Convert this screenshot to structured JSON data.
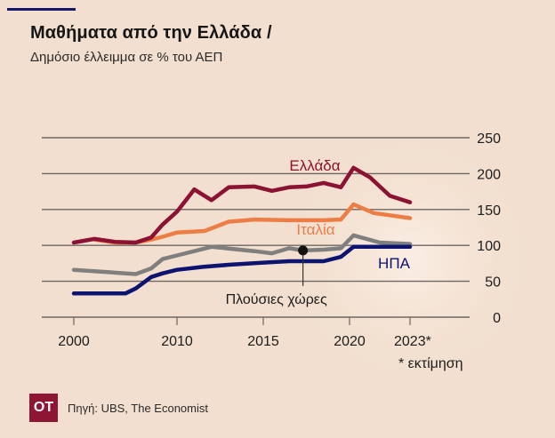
{
  "header": {
    "title": "Μαθήματα από την Ελλάδα  /",
    "subtitle": "Δημόσιο έλλειμμα σε % του ΑΕΠ"
  },
  "colors": {
    "background": "#f2dfcf",
    "greece": "#8b1233",
    "italy": "#ee7d45",
    "rich": "#7f7f7f",
    "usa": "#0c1470",
    "accent_bar": "#12196b",
    "logo": "#8e1634",
    "grid": "#6e6660"
  },
  "footer": {
    "logo_text": "ΟΤ",
    "source": "Πηγή: UBS, The Economist"
  },
  "chart_data": {
    "type": "line",
    "title": "Μαθήματα από την Ελλάδα",
    "subtitle": "Δημόσιο έλλειμμα σε % του ΑΕΠ",
    "xlabel": "",
    "ylabel": "",
    "ylim": [
      0,
      250
    ],
    "y_ticks": [
      0,
      50,
      100,
      150,
      200,
      250
    ],
    "x_ticks": [
      {
        "value": 2000,
        "label": "2000"
      },
      {
        "value": 2010,
        "label": "2010"
      },
      {
        "value": 2015,
        "label": "2015"
      },
      {
        "value": 2020,
        "label": "2020"
      },
      {
        "value": 2023,
        "label": "2023*"
      }
    ],
    "grid": true,
    "y_axis_side": "right",
    "footnote": "* εκτίμηση",
    "series": [
      {
        "name": "Ελλάδα",
        "key": "greece",
        "x": [
          2000,
          2002,
          2004,
          2006,
          2007.5,
          2008.6,
          2010,
          2011,
          2012,
          2013,
          2014.5,
          2015.5,
          2016.5,
          2017.5,
          2018.5,
          2019.5,
          2020.2,
          2021,
          2022,
          2023
        ],
        "values": [
          104,
          109,
          105,
          104,
          111,
          129,
          147,
          178,
          163,
          181,
          182,
          176,
          181,
          182,
          187,
          181,
          208,
          195,
          169,
          160
        ]
      },
      {
        "name": "Ιταλία",
        "key": "italy",
        "x": [
          2002,
          2004,
          2006,
          2007.5,
          2008.6,
          2010,
          2011.6,
          2013,
          2014.5,
          2016.5,
          2018.5,
          2019.5,
          2020.2,
          2021.2,
          2022,
          2023
        ],
        "values": [
          108,
          104,
          104,
          108,
          112,
          118,
          120,
          133,
          136,
          135,
          135,
          136,
          157,
          145,
          142,
          138
        ]
      },
      {
        "name": "Πλούσιες χώρες",
        "key": "rich",
        "x": [
          2000,
          2006,
          2007.5,
          2008.6,
          2010,
          2011,
          2012,
          2014.5,
          2015.5,
          2016.5,
          2017.3,
          2018.5,
          2019.5,
          2020.2,
          2021.5,
          2023
        ],
        "values": [
          66,
          60,
          68,
          81,
          86,
          92,
          98,
          92,
          89,
          96,
          93,
          94,
          96,
          114,
          104,
          102
        ]
      },
      {
        "name": "ΗΠΑ",
        "key": "usa",
        "x": [
          2000,
          2005,
          2006,
          2007.5,
          2008.6,
          2010,
          2011.5,
          2013,
          2015,
          2016.5,
          2018.5,
          2019.5,
          2020.2,
          2023
        ],
        "values": [
          33,
          33,
          40,
          56,
          61,
          66,
          70,
          73,
          76,
          78,
          78,
          84,
          98,
          98
        ]
      }
    ],
    "labels": [
      {
        "series": "greece",
        "text": "Ελλάδα"
      },
      {
        "series": "italy",
        "text": "Ιταλία"
      },
      {
        "series": "usa",
        "text": "ΗΠΑ"
      },
      {
        "series": "rich",
        "text": "Πλούσιες χώρες",
        "annotation_x": 2017.3
      }
    ]
  }
}
